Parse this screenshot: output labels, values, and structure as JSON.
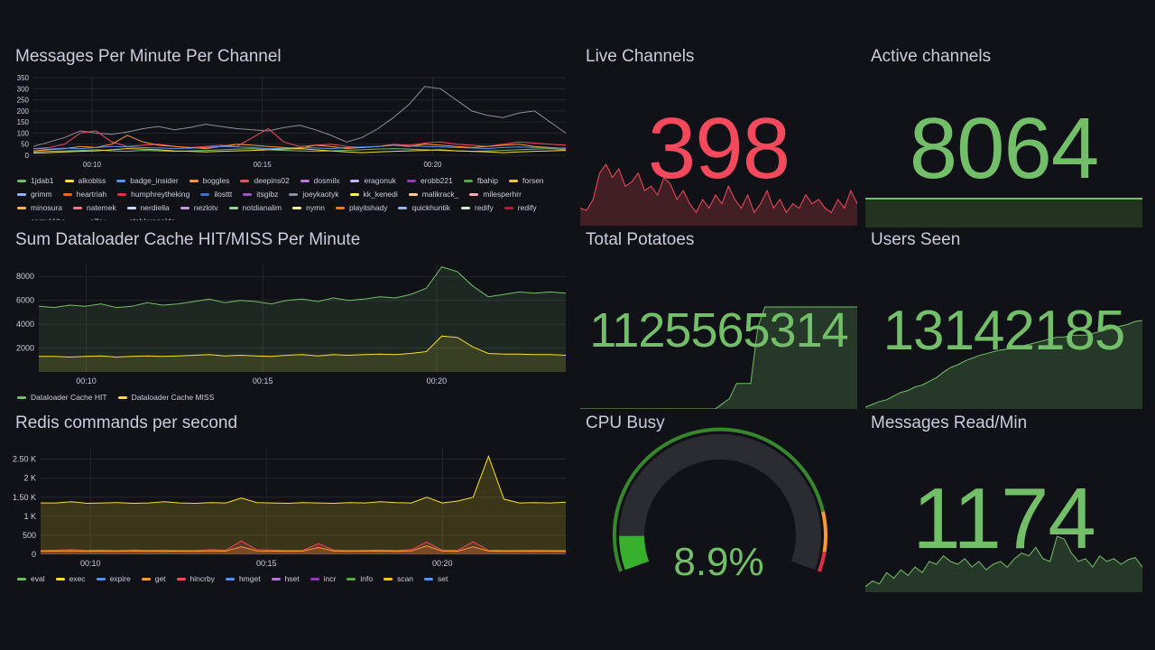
{
  "panels": {
    "messages": {
      "title": "Messages Per Minute Per Channel",
      "legend": [
        {
          "name": "1jdab1",
          "color": "#73bf69"
        },
        {
          "name": "alkoblss",
          "color": "#fade2a"
        },
        {
          "name": "badge_insider",
          "color": "#5794f2"
        },
        {
          "name": "boggles",
          "color": "#ff9830"
        },
        {
          "name": "deepins02",
          "color": "#f2495c"
        },
        {
          "name": "dosmilx",
          "color": "#b877d9"
        },
        {
          "name": "eragonuk",
          "color": "#c4b5f0"
        },
        {
          "name": "erobb221",
          "color": "#8f3bb8"
        },
        {
          "name": "fbahip",
          "color": "#56a64b"
        },
        {
          "name": "forsen",
          "color": "#f2cc0c"
        },
        {
          "name": "grimm",
          "color": "#8ab8ff"
        },
        {
          "name": "heartriah",
          "color": "#fa6400"
        },
        {
          "name": "humphreytheking",
          "color": "#e02f44"
        },
        {
          "name": "ilosttt",
          "color": "#3274d9"
        },
        {
          "name": "itsgibz",
          "color": "#a352cc"
        },
        {
          "name": "joeykaotyk",
          "color": "#8e8ea0"
        },
        {
          "name": "kk_kenedi",
          "color": "#ffee52"
        },
        {
          "name": "malikrack_",
          "color": "#ffcb7d"
        },
        {
          "name": "milesperhrr",
          "color": "#ffa6b0"
        },
        {
          "name": "minosura",
          "color": "#ffb357"
        },
        {
          "name": "natemek",
          "color": "#ff7383"
        },
        {
          "name": "nerdiella",
          "color": "#c0d8ff"
        },
        {
          "name": "nezlotv",
          "color": "#ca95e5"
        },
        {
          "name": "notdianalim",
          "color": "#96d98d"
        },
        {
          "name": "nymn",
          "color": "#fff899"
        },
        {
          "name": "playitshady",
          "color": "#ff780a"
        },
        {
          "name": "quickhuntik",
          "color": "#8ab8ff"
        },
        {
          "name": "redify",
          "color": "#c8f2c2"
        },
        {
          "name": "redify",
          "color": "#c4162a"
        },
        {
          "name": "samukkha",
          "color": "#1f60c4"
        },
        {
          "name": "silky",
          "color": "#de3bdd"
        },
        {
          "name": "stableronaldo",
          "color": "#9ac8ff"
        }
      ],
      "chart_data": {
        "type": "line",
        "yticks": [
          "350",
          "300",
          "250",
          "200",
          "150",
          "100",
          "50",
          "0"
        ],
        "xticks": [
          "00:10",
          "00:15",
          "00:20"
        ],
        "ylim": [
          0,
          350
        ],
        "series": [
          {
            "color": "#8e8ea0",
            "values": [
              40,
              60,
              80,
              110,
              100,
              95,
              105,
              120,
              130,
              115,
              125,
              140,
              130,
              120,
              115,
              110,
              125,
              135,
              115,
              90,
              60,
              80,
              120,
              170,
              230,
              310,
              300,
              250,
              200,
              180,
              170,
              190,
              200,
              150,
              100
            ]
          },
          {
            "color": "#f2495c",
            "values": [
              30,
              35,
              50,
              100,
              110,
              60,
              40,
              45,
              50,
              40,
              35,
              40,
              45,
              40,
              80,
              120,
              60,
              40,
              45,
              50,
              40,
              35,
              40,
              50,
              45,
              55,
              60,
              50,
              45,
              40,
              50,
              60,
              55,
              50,
              45
            ]
          },
          {
            "color": "#ff9830",
            "values": [
              20,
              25,
              30,
              40,
              35,
              50,
              90,
              60,
              45,
              40,
              35,
              30,
              40,
              50,
              45,
              40,
              35,
              30,
              45,
              40,
              30,
              35,
              40,
              45,
              40,
              50,
              45,
              40,
              35,
              40,
              45,
              50,
              40,
              35,
              30
            ]
          },
          {
            "color": "#5794f2",
            "values": [
              30,
              28,
              32,
              30,
              35,
              40,
              38,
              35,
              33,
              30,
              32,
              35,
              40,
              38,
              35,
              30,
              32,
              35,
              33,
              30,
              35,
              38,
              40,
              45,
              42,
              40,
              38,
              35,
              33,
              30,
              35,
              38,
              36,
              34,
              32
            ]
          },
          {
            "color": "#73bf69",
            "values": [
              15,
              18,
              20,
              22,
              25,
              20,
              18,
              22,
              20,
              18,
              20,
              22,
              25,
              28,
              30,
              25,
              22,
              20,
              18,
              20,
              22,
              25,
              28,
              30,
              28,
              25,
              22,
              20,
              18,
              20,
              22,
              25,
              28,
              30,
              25
            ]
          },
          {
            "color": "#fade2a",
            "values": [
              10,
              12,
              15,
              18,
              20,
              25,
              30,
              28,
              25,
              20,
              18,
              15,
              18,
              20,
              22,
              25,
              28,
              30,
              25,
              20,
              15,
              12,
              15,
              18,
              20,
              22,
              25,
              20,
              18,
              15,
              12,
              15,
              18,
              20,
              22
            ]
          }
        ]
      }
    },
    "dataloader": {
      "title": "Sum Dataloader Cache HIT/MISS Per Minute",
      "legend": [
        {
          "name": "Dataloader Cache HIT",
          "color": "#73bf69"
        },
        {
          "name": "Dataloader Cache MISS",
          "color": "#fade2a"
        }
      ],
      "chart_data": {
        "type": "area",
        "yticks": [
          "8000",
          "6000",
          "4000",
          "2000"
        ],
        "xticks": [
          "00:10",
          "00:15",
          "00:20"
        ],
        "ylim": [
          0,
          9000
        ],
        "series": [
          {
            "name": "Dataloader Cache HIT",
            "color": "#73bf69",
            "values": [
              5500,
              5400,
              5600,
              5500,
              5700,
              5400,
              5500,
              5800,
              5600,
              5700,
              5900,
              6100,
              5800,
              6000,
              5900,
              5700,
              6000,
              6100,
              5900,
              6200,
              6000,
              6100,
              6300,
              6200,
              6500,
              7000,
              8800,
              8400,
              7200,
              6300,
              6500,
              6700,
              6600,
              6700,
              6600
            ]
          },
          {
            "name": "Dataloader Cache MISS",
            "color": "#fade2a",
            "values": [
              1300,
              1300,
              1250,
              1300,
              1350,
              1250,
              1300,
              1350,
              1300,
              1350,
              1400,
              1450,
              1350,
              1400,
              1350,
              1300,
              1400,
              1450,
              1350,
              1450,
              1400,
              1450,
              1500,
              1450,
              1550,
              1700,
              3000,
              2900,
              2100,
              1550,
              1500,
              1500,
              1450,
              1450,
              1400
            ]
          }
        ]
      }
    },
    "redis": {
      "title": "Redis commands per second",
      "legend": [
        {
          "name": "eval",
          "color": "#73bf69"
        },
        {
          "name": "exec",
          "color": "#fade2a"
        },
        {
          "name": "expire",
          "color": "#5794f2"
        },
        {
          "name": "get",
          "color": "#ff9830"
        },
        {
          "name": "hincrby",
          "color": "#f2495c"
        },
        {
          "name": "hmget",
          "color": "#5794f2"
        },
        {
          "name": "hset",
          "color": "#b877d9"
        },
        {
          "name": "incr",
          "color": "#8f3bb8"
        },
        {
          "name": "info",
          "color": "#56a64b"
        },
        {
          "name": "scan",
          "color": "#f2cc0c"
        },
        {
          "name": "set",
          "color": "#5794f2"
        }
      ],
      "chart_data": {
        "type": "area",
        "yticks": [
          "2.50 K",
          "2 K",
          "1.50 K",
          "1 K",
          "500",
          "0"
        ],
        "xticks": [
          "00:10",
          "00:15",
          "00:20"
        ],
        "ylim": [
          0,
          2800
        ],
        "series": [
          {
            "name": "exec",
            "color": "#fade2a",
            "values": [
              1350,
              1350,
              1380,
              1340,
              1350,
              1360,
              1340,
              1350,
              1380,
              1350,
              1340,
              1360,
              1350,
              1480,
              1360,
              1350,
              1340,
              1360,
              1350,
              1340,
              1360,
              1350,
              1380,
              1360,
              1350,
              1500,
              1350,
              1400,
              1500,
              2580,
              1450,
              1350,
              1360,
              1350,
              1370
            ]
          },
          {
            "name": "hincrby",
            "color": "#f2495c",
            "values": [
              100,
              110,
              120,
              105,
              110,
              100,
              115,
              105,
              110,
              100,
              105,
              120,
              110,
              350,
              120,
              110,
              100,
              105,
              280,
              110,
              100,
              105,
              110,
              100,
              120,
              320,
              110,
              105,
              330,
              110,
              105,
              100,
              110,
              100,
              105
            ]
          },
          {
            "name": "get",
            "color": "#ff9830",
            "values": [
              80,
              85,
              90,
              80,
              85,
              80,
              90,
              85,
              80,
              85,
              80,
              90,
              85,
              200,
              90,
              85,
              80,
              85,
              180,
              85,
              80,
              85,
              90,
              80,
              90,
              220,
              85,
              80,
              200,
              85,
              80,
              85,
              80,
              85,
              80
            ]
          }
        ]
      }
    },
    "live": {
      "title": "Live Channels",
      "value": "398",
      "color": "#f2495c",
      "spark": [
        40,
        35,
        60,
        120,
        140,
        110,
        130,
        90,
        100,
        120,
        80,
        90,
        70,
        110,
        95,
        60,
        80,
        50,
        30,
        60,
        40,
        70,
        50,
        90,
        60,
        40,
        70,
        30,
        50,
        80,
        40,
        60,
        30,
        50,
        40,
        70,
        50,
        60,
        40,
        30,
        60,
        40,
        80,
        50
      ]
    },
    "active": {
      "title": "Active channels",
      "value": "8064",
      "color": "#73bf69"
    },
    "potatoes": {
      "title": "Total Potatoes",
      "value": "1125565314",
      "color": "#73bf69",
      "spark": [
        0,
        0,
        0,
        0,
        0,
        0,
        0,
        0,
        0,
        0,
        0,
        0,
        0,
        0,
        0,
        0,
        0,
        0,
        0,
        0,
        5,
        10,
        25,
        25,
        25,
        80,
        100,
        100,
        100,
        100,
        100,
        100,
        100,
        100,
        100,
        100,
        100,
        100,
        100,
        100
      ]
    },
    "users": {
      "title": "Users Seen",
      "value": "13142185",
      "color": "#73bf69",
      "spark": [
        2,
        5,
        8,
        10,
        14,
        18,
        20,
        24,
        26,
        30,
        34,
        40,
        45,
        48,
        52,
        55,
        58,
        60,
        62,
        64,
        65,
        66,
        68,
        70,
        72,
        74,
        76,
        78,
        78,
        80,
        80,
        80,
        82,
        84,
        86,
        88,
        90,
        92,
        95,
        96
      ]
    },
    "cpu": {
      "title": "CPU Busy",
      "value": "8.9%",
      "percent": 8.9
    },
    "readmin": {
      "title": "Messages Read/Min",
      "value": "1174",
      "color": "#73bf69",
      "spark": [
        10,
        20,
        15,
        35,
        25,
        40,
        30,
        45,
        35,
        55,
        50,
        65,
        55,
        50,
        60,
        45,
        55,
        40,
        50,
        55,
        45,
        60,
        70,
        65,
        80,
        60,
        55,
        100,
        95,
        70,
        55,
        60,
        45,
        65,
        55,
        60,
        50,
        58,
        62,
        45
      ]
    }
  }
}
